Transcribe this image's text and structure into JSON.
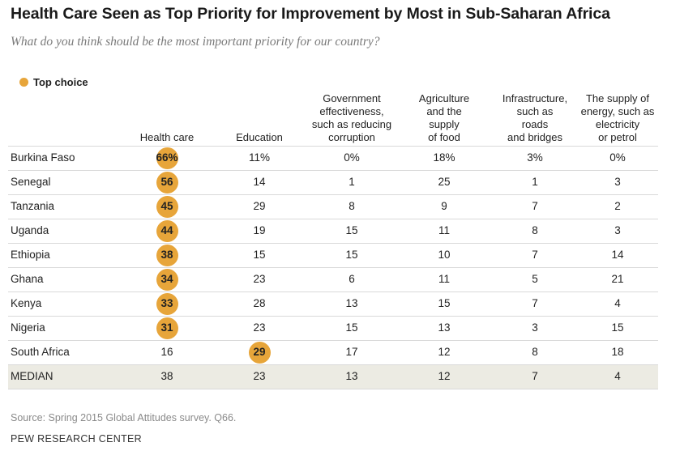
{
  "title": "Health Care Seen as Top Priority for Improvement by Most in Sub-Saharan Africa",
  "subtitle": "What do you think should be the most important priority for our country?",
  "legend": {
    "label": "Top choice",
    "color": "#e7a53a"
  },
  "columns": [
    "Health care",
    "Education",
    "Government effectiveness, such as reducing corruption",
    "Agriculture and the supply of food",
    "Infrastructure, such as roads and bridges",
    "The supply of energy, such as electricity or petrol"
  ],
  "column_headers_display": [
    "Health care",
    "Education",
    "Government\neffectiveness,\nsuch as reducing\ncorruption",
    "Agriculture\nand the\nsupply\nof food",
    "Infrastructure,\nsuch as\nroads\nand bridges",
    "The supply of\nenergy, such as\nelectricity\nor petrol"
  ],
  "rows": [
    {
      "country": "Burkina Faso",
      "display": [
        "66%",
        "11%",
        "0%",
        "18%",
        "3%",
        "0%"
      ],
      "top": 0
    },
    {
      "country": "Senegal",
      "display": [
        "56",
        "14",
        "1",
        "25",
        "1",
        "3"
      ],
      "top": 0
    },
    {
      "country": "Tanzania",
      "display": [
        "45",
        "29",
        "8",
        "9",
        "7",
        "2"
      ],
      "top": 0
    },
    {
      "country": "Uganda",
      "display": [
        "44",
        "19",
        "15",
        "11",
        "8",
        "3"
      ],
      "top": 0
    },
    {
      "country": "Ethiopia",
      "display": [
        "38",
        "15",
        "15",
        "10",
        "7",
        "14"
      ],
      "top": 0
    },
    {
      "country": "Ghana",
      "display": [
        "34",
        "23",
        "6",
        "11",
        "5",
        "21"
      ],
      "top": 0
    },
    {
      "country": "Kenya",
      "display": [
        "33",
        "28",
        "13",
        "15",
        "7",
        "4"
      ],
      "top": 0
    },
    {
      "country": "Nigeria",
      "display": [
        "31",
        "23",
        "15",
        "13",
        "3",
        "15"
      ],
      "top": 0
    },
    {
      "country": "South Africa",
      "display": [
        "16",
        "29",
        "17",
        "12",
        "8",
        "18"
      ],
      "top": 1
    }
  ],
  "median": {
    "label": "MEDIAN",
    "display": [
      "38",
      "23",
      "13",
      "12",
      "7",
      "4"
    ]
  },
  "source": "Source: Spring 2015 Global Attitudes survey. Q66.",
  "credit": "PEW RESEARCH CENTER",
  "chart_data": {
    "type": "table",
    "title": "Health Care Seen as Top Priority for Improvement by Most in Sub-Saharan Africa",
    "subtitle": "What do you think should be the most important priority for our country?",
    "unit": "%",
    "categories": [
      "Burkina Faso",
      "Senegal",
      "Tanzania",
      "Uganda",
      "Ethiopia",
      "Ghana",
      "Kenya",
      "Nigeria",
      "South Africa",
      "MEDIAN"
    ],
    "series": [
      {
        "name": "Health care",
        "values": [
          66,
          56,
          45,
          44,
          38,
          34,
          33,
          31,
          16,
          38
        ]
      },
      {
        "name": "Education",
        "values": [
          11,
          14,
          29,
          19,
          15,
          23,
          28,
          23,
          29,
          23
        ]
      },
      {
        "name": "Government effectiveness, such as reducing corruption",
        "values": [
          0,
          1,
          8,
          15,
          15,
          6,
          13,
          15,
          17,
          13
        ]
      },
      {
        "name": "Agriculture and the supply of food",
        "values": [
          18,
          25,
          9,
          11,
          10,
          11,
          15,
          13,
          12,
          12
        ]
      },
      {
        "name": "Infrastructure, such as roads and bridges",
        "values": [
          3,
          1,
          7,
          8,
          7,
          5,
          7,
          3,
          8,
          7
        ]
      },
      {
        "name": "The supply of energy, such as electricity or petrol",
        "values": [
          0,
          3,
          2,
          3,
          14,
          21,
          4,
          15,
          18,
          4
        ]
      }
    ],
    "top_choice_highlight": "circle"
  }
}
